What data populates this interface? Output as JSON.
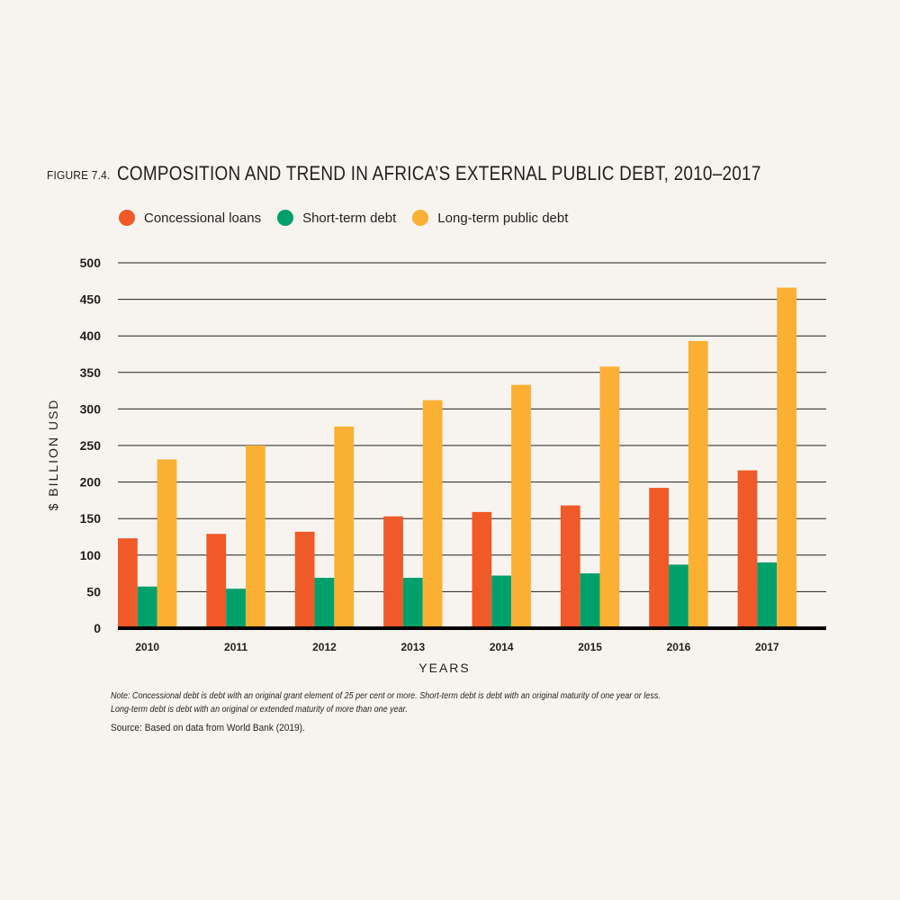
{
  "figure": {
    "label": "FIGURE 7.4.",
    "title": "COMPOSITION AND TREND IN AFRICA’S EXTERNAL PUBLIC DEBT, 2010–2017"
  },
  "colors": {
    "concessional": "#f05a28",
    "short_term": "#00a06a",
    "long_term": "#fbb034",
    "gridline": "#231f20",
    "background": "#f7f4ef"
  },
  "chart_data": {
    "type": "bar",
    "categories": [
      "2010",
      "2011",
      "2012",
      "2013",
      "2014",
      "2015",
      "2016",
      "2017"
    ],
    "series": [
      {
        "name": "Concessional loans",
        "values": [
          123,
          129,
          132,
          153,
          159,
          168,
          192,
          216
        ]
      },
      {
        "name": "Short-term debt",
        "values": [
          57,
          54,
          69,
          69,
          72,
          75,
          87,
          90
        ]
      },
      {
        "name": "Long-term public debt",
        "values": [
          231,
          250,
          276,
          312,
          333,
          358,
          393,
          466
        ]
      }
    ],
    "xlabel": "YEARS",
    "ylabel": "$ BILLION USD",
    "ylim": [
      0,
      500
    ],
    "yticks": [
      0,
      50,
      100,
      150,
      200,
      250,
      300,
      350,
      400,
      450,
      500
    ],
    "grid": true,
    "legend_position": "top-left"
  },
  "notes": {
    "line1": "Note: Concessional debt is debt with an original grant element of 25 per cent or more. Short-term debt is debt with an original maturity of one year or less.",
    "line2": "Long-term debt is debt with an original or extended maturity of more than one year.",
    "source": "Source: Based on data from World Bank (2019)."
  }
}
